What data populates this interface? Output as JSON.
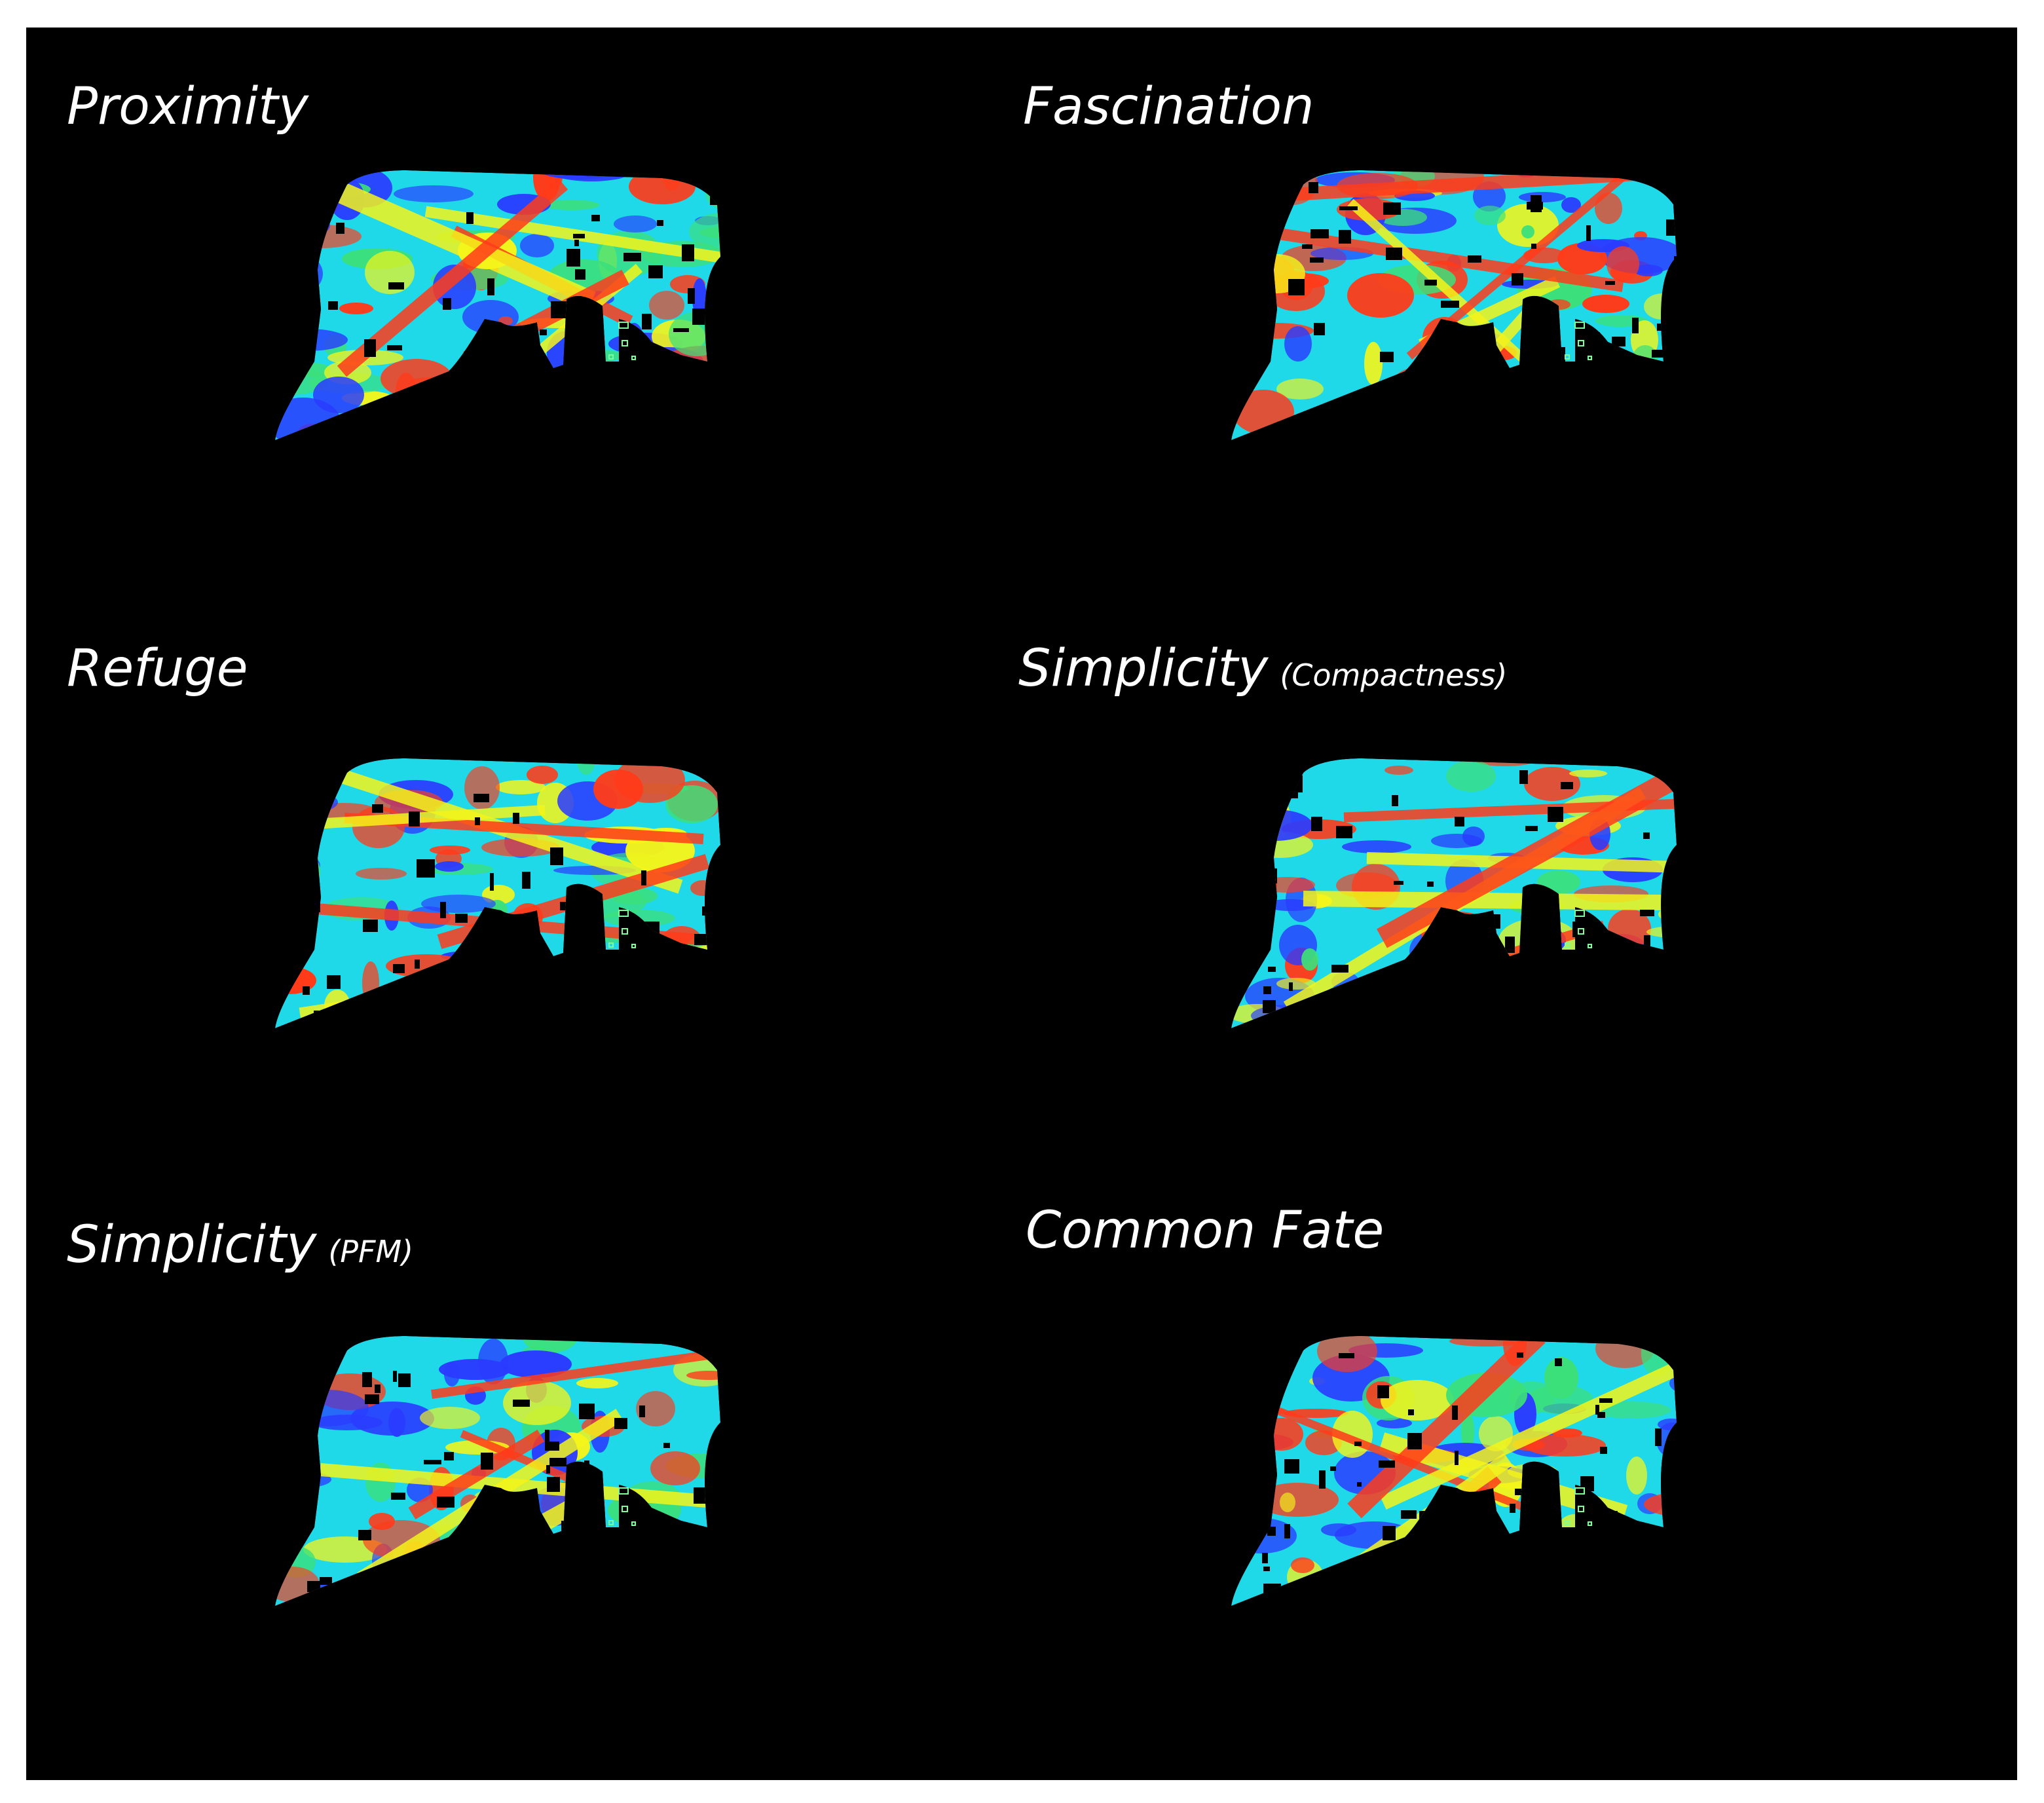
{
  "panels": [
    {
      "title": "Proximity",
      "subtitle": "",
      "palette": {
        "base": "#1fd8e8",
        "a": "#ff3b1a",
        "b": "#2a3cff",
        "c": "#f5f51a",
        "d": "#3ce07a"
      }
    },
    {
      "title": "Fascination",
      "subtitle": "",
      "palette": {
        "base": "#1fd8e8",
        "a": "#ff3b1a",
        "b": "#2a3cff",
        "c": "#f5f51a",
        "d": "#3ce07a"
      }
    },
    {
      "title": "Refuge",
      "subtitle": "",
      "palette": {
        "base": "#1fd8e8",
        "a": "#ff3b1a",
        "b": "#2a3cff",
        "c": "#f5f51a",
        "d": "#3ce07a"
      }
    },
    {
      "title": "Simplicity",
      "subtitle": "(Compactness)",
      "palette": {
        "base": "#1fd8e8",
        "a": "#ff3b1a",
        "b": "#2a3cff",
        "c": "#f5f51a",
        "d": "#3ce07a"
      }
    },
    {
      "title": "Simplicity",
      "subtitle": "(PFM)",
      "palette": {
        "base": "#1fd8e8",
        "a": "#ff3b1a",
        "b": "#2a3cff",
        "c": "#f5f51a",
        "d": "#3ce07a"
      }
    },
    {
      "title": "Common Fate",
      "subtitle": "",
      "palette": {
        "base": "#1fd8e8",
        "a": "#ff3b1a",
        "b": "#2a3cff",
        "c": "#f5f51a",
        "d": "#3ce07a"
      }
    }
  ],
  "colors": {
    "background": "#000000",
    "outer": "#ffffff",
    "title": "#ffffff",
    "outline": "#7cff9a"
  }
}
